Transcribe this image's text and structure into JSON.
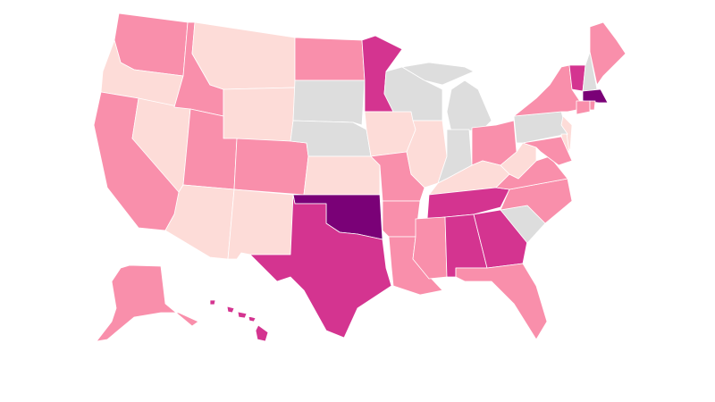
{
  "map": {
    "type": "choropleth",
    "region": "United States",
    "category_colors": {
      "light": "#fddcd8",
      "medium": "#f98fab",
      "high": "#d43490",
      "highest": "#7a0177",
      "no_data": "#dddddd"
    },
    "states": {
      "WA": "medium",
      "OR": "light",
      "CA": "medium",
      "NV": "light",
      "ID": "medium",
      "MT": "light",
      "WY": "light",
      "UT": "medium",
      "CO": "medium",
      "AZ": "light",
      "NM": "light",
      "ND": "medium",
      "SD": "no_data",
      "NE": "no_data",
      "KS": "light",
      "OK": "highest",
      "TX": "high",
      "MN": "high",
      "IA": "light",
      "MO": "medium",
      "AR": "medium",
      "LA": "medium",
      "WI": "no_data",
      "IL": "light",
      "MI": "no_data",
      "IN": "no_data",
      "OH": "medium",
      "KY": "light",
      "TN": "high",
      "MS": "medium",
      "AL": "high",
      "GA": "high",
      "FL": "medium",
      "SC": "no_data",
      "NC": "medium",
      "VA": "medium",
      "WV": "light",
      "PA": "no_data",
      "NY": "medium",
      "NJ": "light",
      "DE": "light",
      "MD": "medium",
      "VT": "high",
      "NH": "no_data",
      "ME": "medium",
      "MA": "highest",
      "CT": "medium",
      "RI": "medium",
      "AK": "medium",
      "HI": "high"
    }
  }
}
